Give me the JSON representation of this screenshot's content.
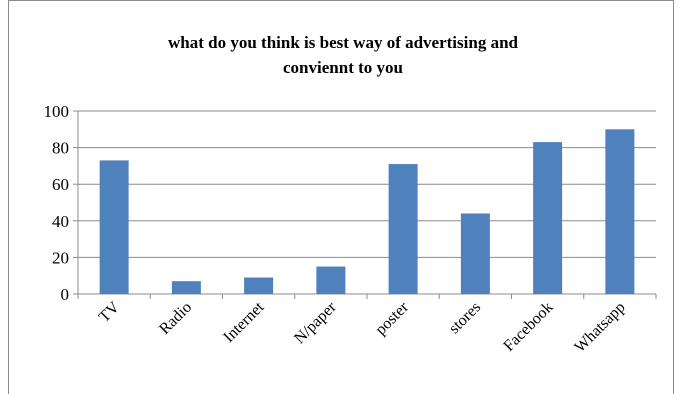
{
  "chart_data": {
    "type": "bar",
    "title_lines": [
      "what do you think is best way of advertising and",
      "conviennt to you"
    ],
    "categories": [
      "TV",
      "Radio",
      "Internet",
      "N/paper",
      "poster",
      "stores",
      "Facebook",
      "Whatsapp"
    ],
    "values": [
      73,
      7,
      9,
      15,
      71,
      44,
      83,
      90
    ],
    "ylim": [
      0,
      100
    ],
    "yticks": [
      0,
      20,
      40,
      60,
      80,
      100
    ],
    "grid": true,
    "bar_color": "#4f81bd",
    "xlabel": "",
    "ylabel": ""
  }
}
